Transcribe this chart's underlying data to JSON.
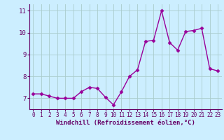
{
  "x": [
    0,
    1,
    2,
    3,
    4,
    5,
    6,
    7,
    8,
    9,
    10,
    11,
    12,
    13,
    14,
    15,
    16,
    17,
    18,
    19,
    20,
    21,
    22,
    23
  ],
  "y": [
    7.2,
    7.2,
    7.1,
    7.0,
    7.0,
    7.0,
    7.3,
    7.5,
    7.45,
    7.05,
    6.7,
    7.3,
    8.0,
    8.3,
    9.6,
    9.65,
    11.0,
    9.55,
    9.2,
    10.05,
    10.1,
    10.2,
    8.35,
    8.25
  ],
  "line_color": "#990099",
  "marker": "D",
  "marker_size": 2.5,
  "linewidth": 1.0,
  "background_color": "#cceeff",
  "grid_color": "#aacccc",
  "xlabel": "Windchill (Refroidissement éolien,°C)",
  "xlabel_fontsize": 6.5,
  "ylim": [
    6.5,
    11.3
  ],
  "xlim": [
    -0.5,
    23.5
  ],
  "yticks": [
    7,
    8,
    9,
    10,
    11
  ],
  "xticks": [
    0,
    1,
    2,
    3,
    4,
    5,
    6,
    7,
    8,
    9,
    10,
    11,
    12,
    13,
    14,
    15,
    16,
    17,
    18,
    19,
    20,
    21,
    22,
    23
  ],
  "xtick_fontsize": 5.5,
  "ytick_fontsize": 6.5
}
